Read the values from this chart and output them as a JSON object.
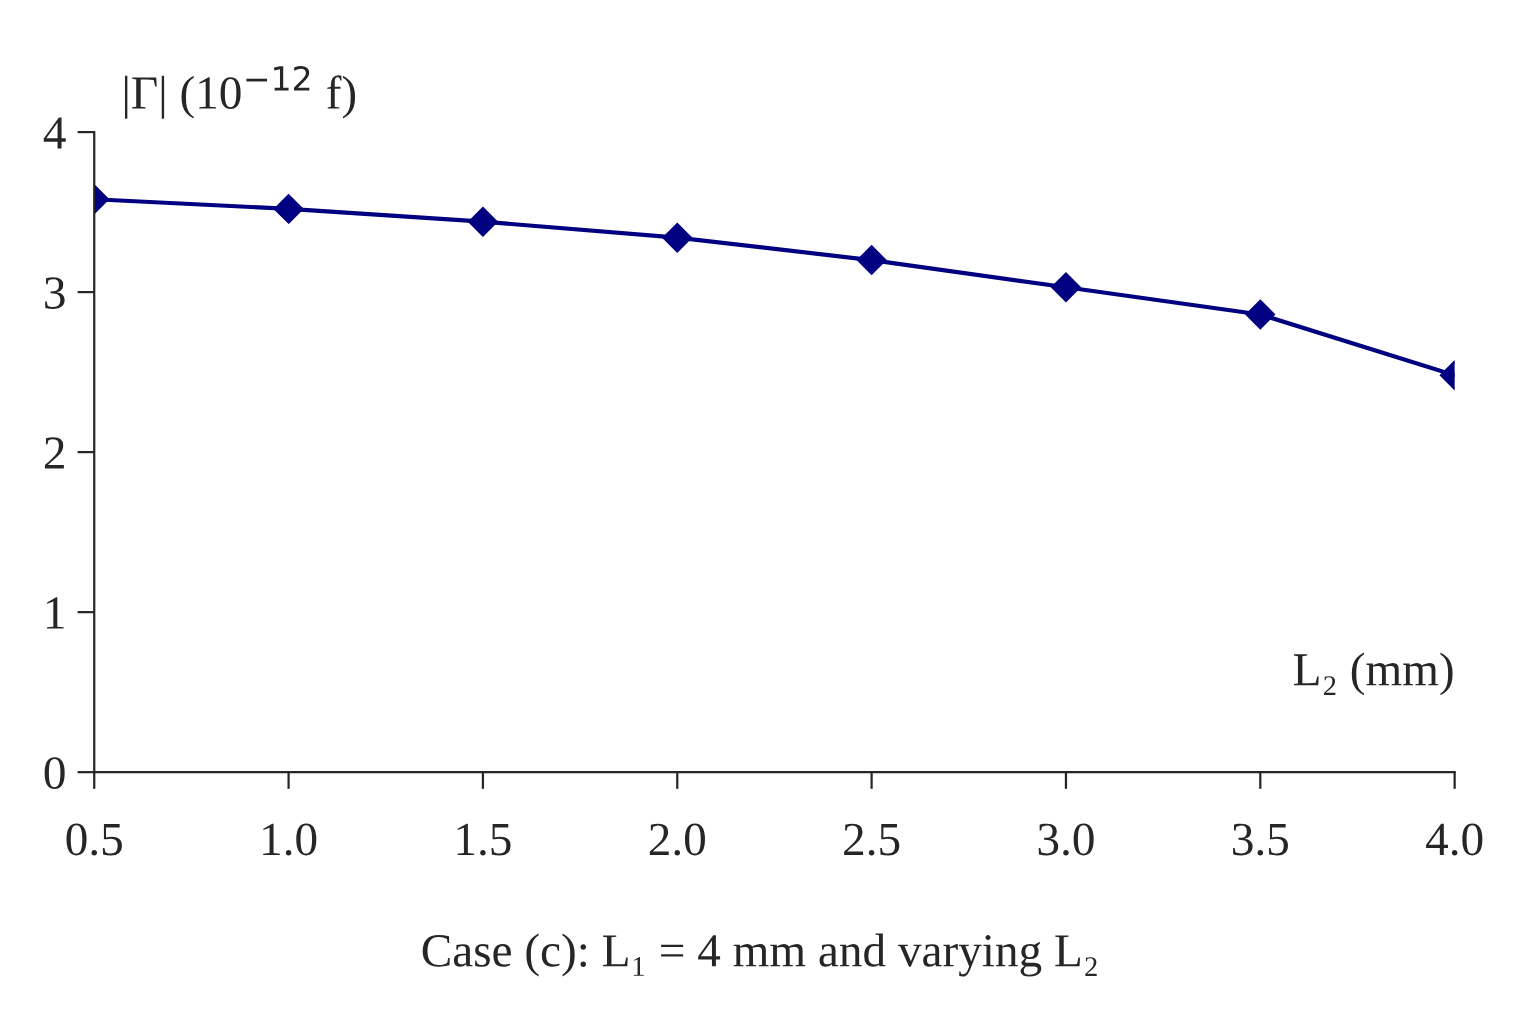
{
  "chart_data": {
    "type": "line",
    "ylabel": "|Γ| (10$^{−12}$ f)",
    "xlabel": "L₂ (mm)",
    "annotations": [
      "Case (c): L₁ = 4 mm and varying L₂"
    ],
    "x": [
      0.5,
      1.0,
      1.5,
      2.0,
      2.5,
      3.0,
      3.5,
      4.0
    ],
    "series": [
      {
        "color": "#000080",
        "values": [
          3.58,
          3.52,
          3.44,
          3.34,
          3.2,
          3.03,
          2.86,
          2.48
        ]
      }
    ],
    "xlim": [
      0.5,
      4.0
    ],
    "xticks": [
      {
        "value": 0.5,
        "label": "0.5"
      },
      {
        "value": 1.0,
        "label": "1.0"
      },
      {
        "value": 1.5,
        "label": "1.5"
      },
      {
        "value": 2.0,
        "label": "2.0"
      },
      {
        "value": 2.5,
        "label": "2.5"
      },
      {
        "value": 3.0,
        "label": "3.0"
      },
      {
        "value": 3.5,
        "label": "3.5"
      },
      {
        "value": 4.0,
        "label": "4.0"
      }
    ],
    "ylim": [
      0,
      4
    ],
    "yticks": [
      0,
      1,
      2,
      3,
      4
    ],
    "grid": false,
    "legend": false,
    "marker": "diamond",
    "line_style": "solid"
  }
}
